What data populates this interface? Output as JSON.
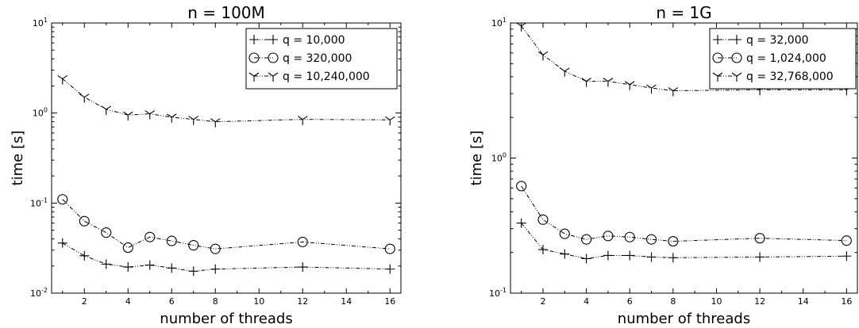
{
  "chart_data": [
    {
      "type": "line",
      "title": "n = 100M",
      "xlabel": "number of threads",
      "ylabel": "time [s]",
      "yscale": "log",
      "xlim": [
        0.5,
        16.5
      ],
      "ylim": [
        0.01,
        10
      ],
      "xticks": [
        2,
        4,
        6,
        8,
        10,
        12,
        14,
        16
      ],
      "yticks": [
        0.01,
        0.1,
        1,
        10
      ],
      "ytick_labels": [
        {
          "base": "10",
          "exp": "-2"
        },
        {
          "base": "10",
          "exp": "-1"
        },
        {
          "base": "10",
          "exp": "0"
        },
        {
          "base": "10",
          "exp": "1"
        }
      ],
      "legend_position": "top-right",
      "series": [
        {
          "name": "q = 10,000",
          "marker": "plus",
          "x": [
            1,
            2,
            3,
            4,
            5,
            6,
            7,
            8,
            12,
            16
          ],
          "y": [
            0.036,
            0.026,
            0.021,
            0.0195,
            0.0205,
            0.019,
            0.0175,
            0.0185,
            0.0195,
            0.0185
          ]
        },
        {
          "name": "q = 320,000",
          "marker": "circle",
          "x": [
            1,
            2,
            3,
            4,
            5,
            6,
            7,
            8,
            12,
            16
          ],
          "y": [
            0.11,
            0.063,
            0.047,
            0.032,
            0.042,
            0.038,
            0.034,
            0.031,
            0.037,
            0.031
          ]
        },
        {
          "name": "q = 10,240,000",
          "marker": "tri",
          "x": [
            1,
            2,
            3,
            4,
            5,
            6,
            7,
            8,
            12,
            16
          ],
          "y": [
            2.4,
            1.5,
            1.1,
            0.95,
            0.98,
            0.9,
            0.85,
            0.8,
            0.85,
            0.84
          ]
        }
      ]
    },
    {
      "type": "line",
      "title": "n = 1G",
      "xlabel": "number of threads",
      "ylabel": "time [s]",
      "yscale": "log",
      "xlim": [
        0.5,
        16.5
      ],
      "ylim": [
        0.1,
        10
      ],
      "xticks": [
        2,
        4,
        6,
        8,
        10,
        12,
        14,
        16
      ],
      "yticks": [
        0.1,
        1,
        10
      ],
      "ytick_labels": [
        {
          "base": "10",
          "exp": "-1"
        },
        {
          "base": "10",
          "exp": "0"
        },
        {
          "base": "10",
          "exp": "1"
        }
      ],
      "legend_position": "top-right",
      "series": [
        {
          "name": "q = 32,000",
          "marker": "plus",
          "x": [
            1,
            2,
            3,
            4,
            5,
            6,
            7,
            8,
            12,
            16
          ],
          "y": [
            0.33,
            0.21,
            0.195,
            0.18,
            0.19,
            0.19,
            0.185,
            0.183,
            0.185,
            0.188
          ]
        },
        {
          "name": "q = 1,024,000",
          "marker": "circle",
          "x": [
            1,
            2,
            3,
            4,
            5,
            6,
            7,
            8,
            12,
            16
          ],
          "y": [
            0.62,
            0.35,
            0.275,
            0.25,
            0.265,
            0.26,
            0.25,
            0.242,
            0.255,
            0.245
          ]
        },
        {
          "name": "q = 32,768,000",
          "marker": "tri",
          "x": [
            1,
            2,
            3,
            4,
            5,
            6,
            7,
            8,
            12,
            16
          ],
          "y": [
            9.5,
            5.8,
            4.4,
            3.7,
            3.7,
            3.5,
            3.3,
            3.15,
            3.2,
            3.2
          ]
        }
      ]
    }
  ]
}
